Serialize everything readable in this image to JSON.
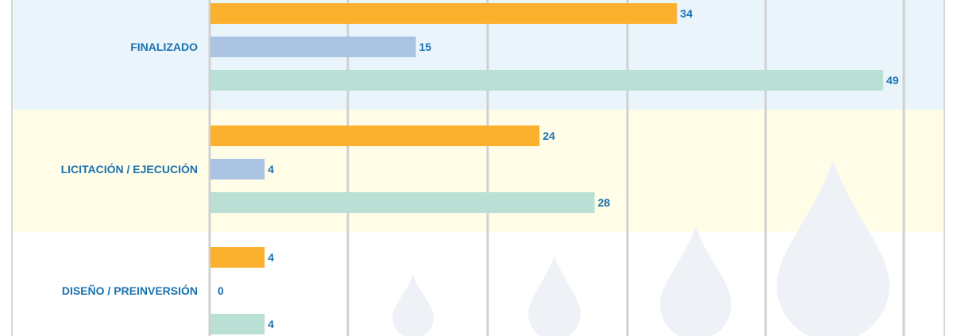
{
  "colors": {
    "band_top": "#eaf4fb",
    "band_middle": "#fffce8",
    "band_bottom": "#ffffff",
    "frame": "#d8d8d8",
    "grid": "#d0d0d0",
    "label_text": "#1a72b0",
    "drop": "#eef2f6"
  },
  "chart_data": {
    "type": "bar",
    "orientation": "horizontal",
    "categories": [
      "FINALIZADO",
      "LICITACIÓN / EJECUCIÓN",
      "DISEÑO / PREINVERSIÓN"
    ],
    "series": [
      {
        "color": "#fbb12e",
        "values": [
          34,
          24,
          4
        ]
      },
      {
        "color": "#aac3e3",
        "values": [
          15,
          4,
          0
        ]
      },
      {
        "color": "#badfd5",
        "values": [
          49,
          28,
          4
        ]
      }
    ],
    "xlim": [
      0,
      50
    ],
    "grid_vertical": true,
    "legend": "none"
  }
}
